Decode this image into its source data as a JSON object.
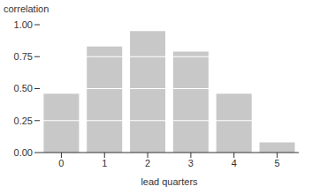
{
  "chart_data": {
    "type": "bar",
    "y_label": "correlation",
    "x_label": "lead quarters",
    "categories": [
      "0",
      "1",
      "2",
      "3",
      "4",
      "5"
    ],
    "values": [
      0.46,
      0.83,
      0.95,
      0.79,
      0.46,
      0.08
    ],
    "color": "#c8c8c8",
    "ylim": [
      0,
      1
    ],
    "yticks": [
      {
        "value": 0,
        "label": "0.00"
      },
      {
        "value": 0.25,
        "label": "0.25"
      },
      {
        "value": 0.5,
        "label": "0.50"
      },
      {
        "value": 0.75,
        "label": "0.75"
      },
      {
        "value": 1,
        "label": "1.00"
      }
    ],
    "grid": true
  }
}
